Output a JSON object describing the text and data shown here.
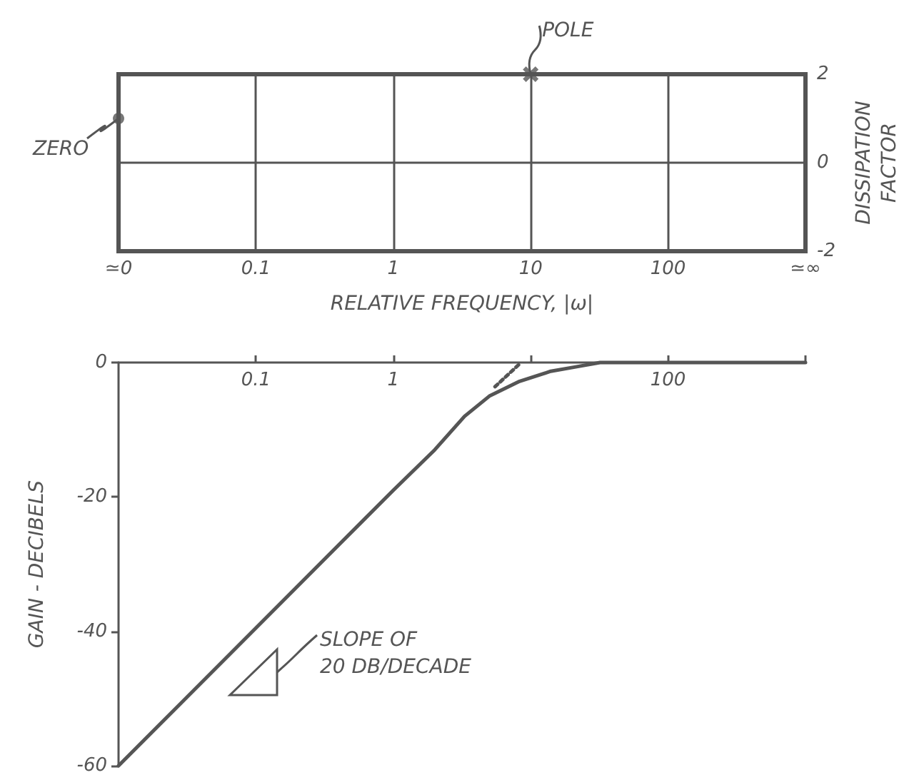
{
  "chart_data": [
    {
      "type": "scatter",
      "xlabel": "RELATIVE FREQUENCY, |ω|",
      "y2label": "DISSIPATION\nFACTOR",
      "log": "x",
      "grid": true,
      "xlim": [
        0.01,
        1000
      ],
      "xticks": [
        {
          "value": 0.01,
          "label": "≃0"
        },
        0.1,
        1,
        10,
        100,
        {
          "value": 1000,
          "label": "≃∞"
        }
      ],
      "y2lim": [
        -2,
        2
      ],
      "y2ticks": [
        -2,
        0,
        2
      ],
      "series": [
        {
          "color": "#555555",
          "x": [
            0.01
          ],
          "values": [
            1
          ],
          "marker": "circle",
          "axis": "y2"
        },
        {
          "color": "#555555",
          "x": [
            10
          ],
          "values": [
            2
          ],
          "marker": "cross",
          "axis": "y2"
        }
      ],
      "annotations": [
        "ZERO",
        "POLE"
      ]
    },
    {
      "type": "line",
      "ylabel": "GAIN - DECIBELS",
      "log": "x",
      "grid": false,
      "marker": "none",
      "xlim": [
        0.01,
        1000
      ],
      "xticks": [
        0.1,
        1,
        {
          "value": 10,
          "label": null
        },
        100,
        {
          "value": 1000,
          "label": null
        }
      ],
      "ylim": [
        -60,
        0
      ],
      "yticks": [
        0,
        -20,
        -40,
        -60
      ],
      "series": [
        {
          "color": "#555555",
          "line_style": "solid",
          "x": [
            0.01,
            0.1,
            1,
            2,
            3.3,
            5,
            8.3,
            14,
            22,
            32,
            100,
            1000
          ],
          "values": [
            -60,
            -39.5,
            -19,
            -13,
            -8,
            -5,
            -2.8,
            -1.3,
            -0.6,
            0,
            0,
            0
          ]
        },
        {
          "color": "#555555",
          "line_style": "dotted",
          "x": [
            5.5,
            8.3
          ],
          "values": [
            -3.6,
            -0.2
          ]
        }
      ],
      "annotations": [
        "SLOPE OF\n20 DB/DECADE"
      ]
    }
  ]
}
